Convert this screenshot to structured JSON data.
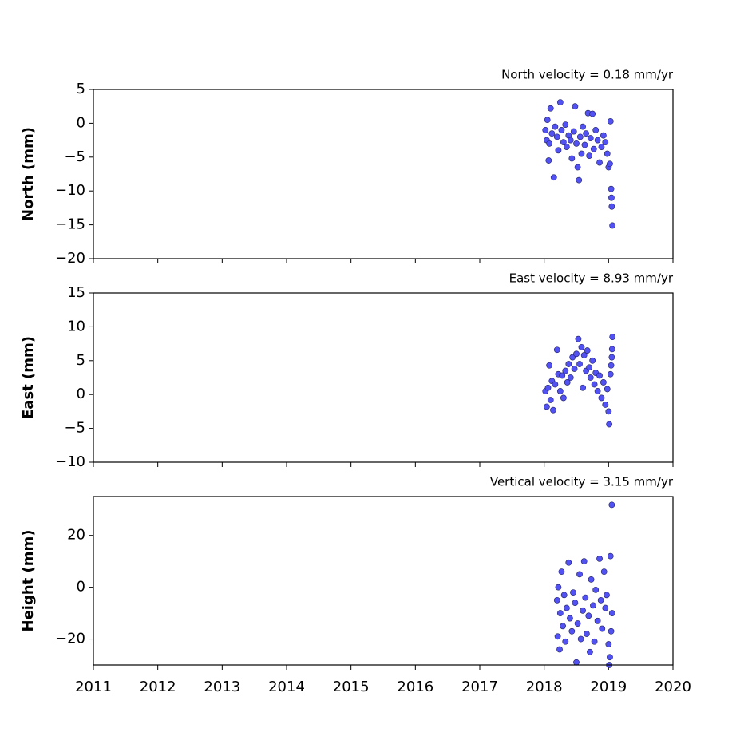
{
  "chart_data": [
    {
      "type": "scatter",
      "title": "North velocity = 0.18 mm/yr",
      "y_label": "North (mm)",
      "color": "#5252f2",
      "edge_color": "#222266",
      "x": [
        2018.02,
        2018.04,
        2018.05,
        2018.07,
        2018.08,
        2018.1,
        2018.12,
        2018.15,
        2018.17,
        2018.2,
        2018.22,
        2018.25,
        2018.27,
        2018.3,
        2018.33,
        2018.35,
        2018.38,
        2018.41,
        2018.43,
        2018.46,
        2018.48,
        2018.5,
        2018.52,
        2018.54,
        2018.56,
        2018.58,
        2018.6,
        2018.63,
        2018.65,
        2018.68,
        2018.7,
        2018.72,
        2018.75,
        2018.77,
        2018.8,
        2018.83,
        2018.86,
        2018.89,
        2018.92,
        2018.95,
        2018.98,
        2019.0,
        2019.02,
        2019.03,
        2019.04,
        2019.045,
        2019.05,
        2019.06
      ],
      "values": [
        -1.0,
        -2.5,
        0.5,
        -5.5,
        -3.0,
        2.2,
        -1.5,
        -8.0,
        -0.5,
        -2.0,
        -4.0,
        3.1,
        -1.0,
        -2.8,
        -0.2,
        -3.5,
        -1.8,
        -2.5,
        -5.2,
        -1.2,
        2.5,
        -3.0,
        -6.5,
        -8.4,
        -2.0,
        -4.5,
        -0.5,
        -3.2,
        -1.5,
        1.5,
        -4.8,
        -2.2,
        1.4,
        -3.8,
        -1.0,
        -2.5,
        -5.8,
        -3.5,
        -1.8,
        -2.8,
        -4.5,
        -6.5,
        -6.0,
        0.3,
        -9.7,
        -11.0,
        -12.3,
        -15.1
      ],
      "xlim": [
        2011,
        2020
      ],
      "xticks": [
        2011,
        2012,
        2013,
        2014,
        2015,
        2016,
        2017,
        2018,
        2019,
        2020
      ],
      "show_xticklabels": false,
      "ylim": [
        -20,
        5
      ],
      "yticks": [
        {
          "value": -20,
          "label": "−20"
        },
        {
          "value": -15,
          "label": "−15"
        },
        {
          "value": -10,
          "label": "−10"
        },
        {
          "value": -5,
          "label": "−5"
        },
        0,
        5
      ]
    },
    {
      "type": "scatter",
      "title": "East velocity = 8.93 mm/yr",
      "y_label": "East (mm)",
      "color": "#5252f2",
      "edge_color": "#222266",
      "x": [
        2018.02,
        2018.04,
        2018.06,
        2018.08,
        2018.1,
        2018.12,
        2018.14,
        2018.17,
        2018.2,
        2018.22,
        2018.25,
        2018.28,
        2018.3,
        2018.33,
        2018.36,
        2018.38,
        2018.41,
        2018.44,
        2018.47,
        2018.5,
        2018.53,
        2018.55,
        2018.58,
        2018.6,
        2018.62,
        2018.65,
        2018.67,
        2018.7,
        2018.72,
        2018.75,
        2018.78,
        2018.8,
        2018.83,
        2018.86,
        2018.89,
        2018.92,
        2018.95,
        2018.98,
        2019.0,
        2019.01,
        2019.03,
        2019.04,
        2019.05,
        2019.055,
        2019.06
      ],
      "values": [
        0.5,
        -1.8,
        1.0,
        4.3,
        -0.8,
        2.0,
        -2.3,
        1.5,
        6.6,
        3.0,
        0.5,
        2.8,
        -0.5,
        3.5,
        1.8,
        4.5,
        2.5,
        5.5,
        3.8,
        6.0,
        8.2,
        4.5,
        7.0,
        1.0,
        5.8,
        3.5,
        6.5,
        4.0,
        2.5,
        5.0,
        1.5,
        3.2,
        0.5,
        2.8,
        -0.5,
        1.8,
        -1.5,
        0.8,
        -2.5,
        -4.4,
        3.0,
        4.3,
        5.5,
        6.7,
        8.5
      ],
      "xlim": [
        2011,
        2020
      ],
      "xticks": [
        2011,
        2012,
        2013,
        2014,
        2015,
        2016,
        2017,
        2018,
        2019,
        2020
      ],
      "show_xticklabels": false,
      "ylim": [
        -10,
        15
      ],
      "yticks": [
        {
          "value": -10,
          "label": "−10"
        },
        {
          "value": -5,
          "label": "−5"
        },
        0,
        5,
        10,
        15
      ]
    },
    {
      "type": "scatter",
      "title": "Vertical velocity = 3.15 mm/yr",
      "y_label": "Height (mm)",
      "color": "#5252f2",
      "edge_color": "#222266",
      "x": [
        2018.2,
        2018.21,
        2018.22,
        2018.24,
        2018.25,
        2018.27,
        2018.29,
        2018.31,
        2018.33,
        2018.35,
        2018.38,
        2018.4,
        2018.43,
        2018.45,
        2018.48,
        2018.5,
        2018.52,
        2018.55,
        2018.57,
        2018.6,
        2018.62,
        2018.64,
        2018.66,
        2018.69,
        2018.71,
        2018.73,
        2018.76,
        2018.78,
        2018.8,
        2018.83,
        2018.86,
        2018.88,
        2018.9,
        2018.93,
        2018.95,
        2018.97,
        2019.0,
        2019.01,
        2019.02,
        2019.03,
        2019.04,
        2019.05,
        2019.055
      ],
      "values": [
        -5,
        -19,
        0,
        -24,
        -10,
        6,
        -15,
        -3,
        -21,
        -8,
        9.5,
        -12,
        -17,
        -2,
        -6,
        -29,
        -14,
        5,
        -20,
        -9,
        10,
        -4,
        -18,
        -11,
        -25,
        3,
        -7,
        -21,
        -1,
        -13,
        11,
        -5,
        -16,
        6,
        -8,
        -3,
        -22,
        -30,
        -27,
        12,
        -17,
        31.8,
        -10
      ],
      "xlim": [
        2011,
        2020
      ],
      "xticks": [
        2011,
        2012,
        2013,
        2014,
        2015,
        2016,
        2017,
        2018,
        2019,
        2020
      ],
      "show_xticklabels": true,
      "ylim": [
        -30,
        35
      ],
      "yticks": [
        {
          "value": -20,
          "label": "−20"
        },
        0,
        20
      ]
    }
  ]
}
